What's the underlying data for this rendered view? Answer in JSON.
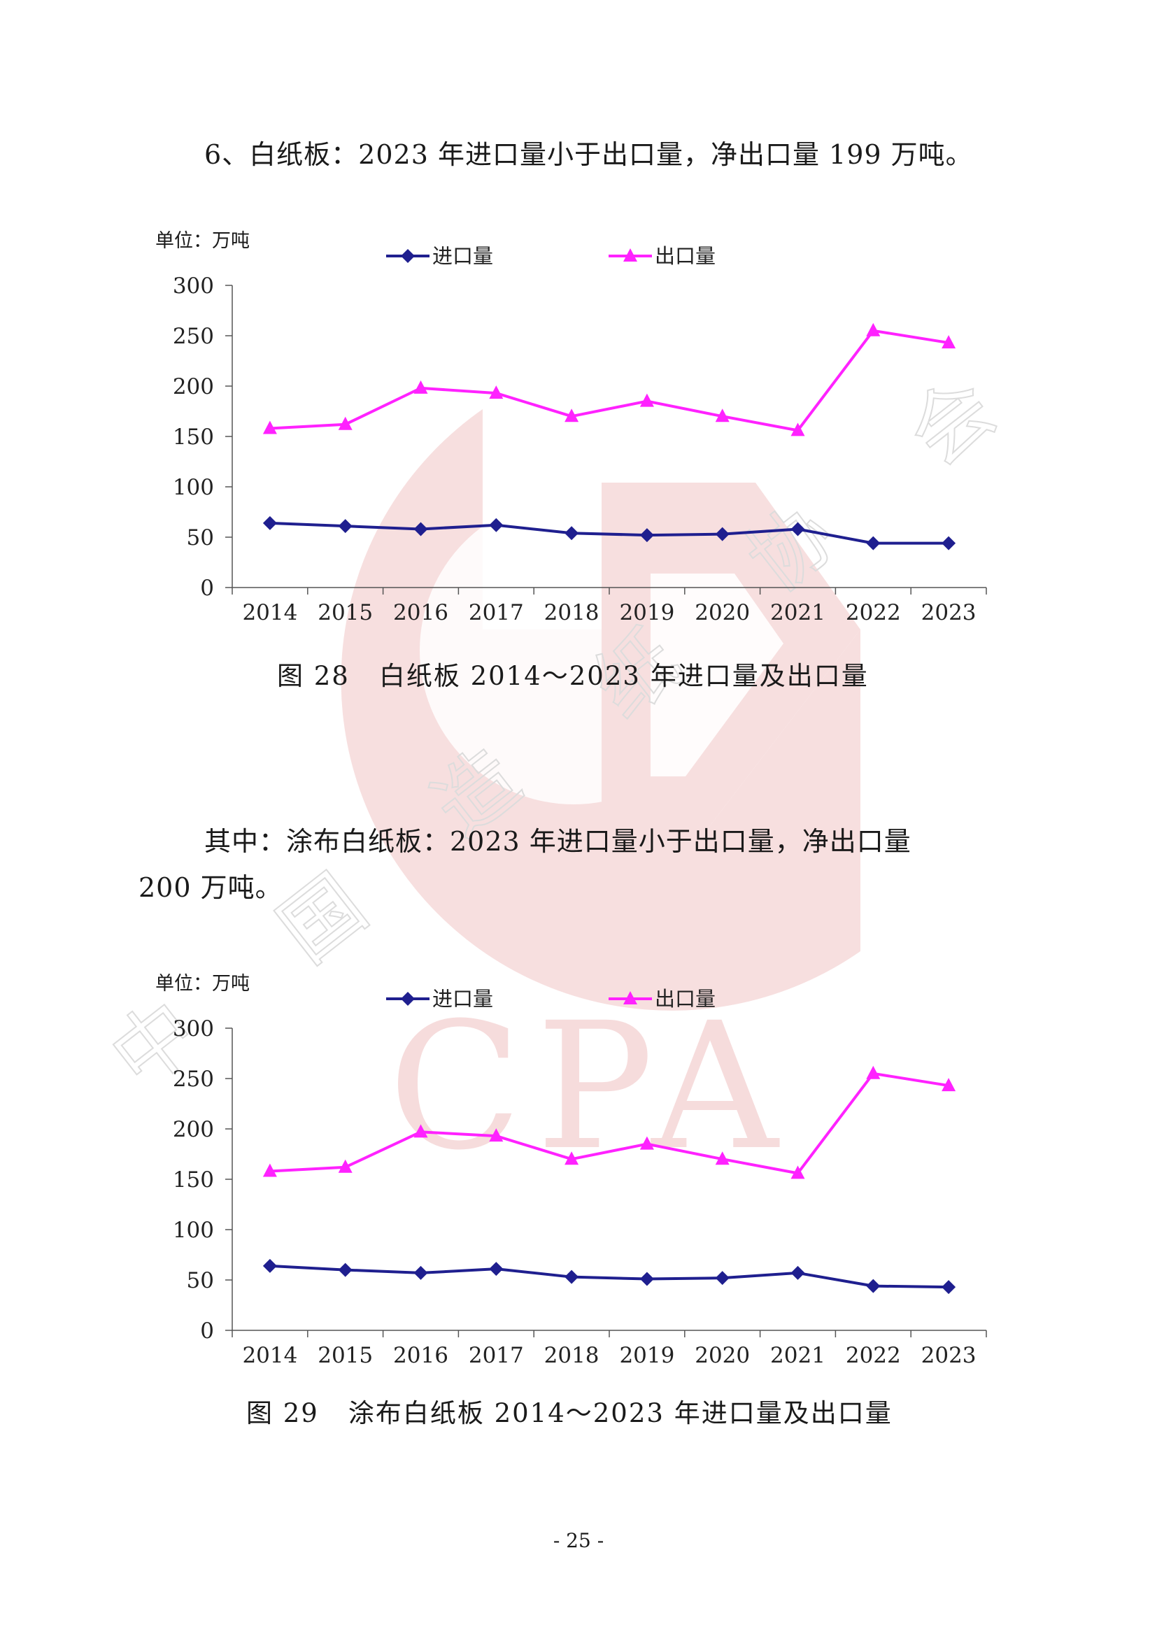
{
  "paragraphs": {
    "section6": "6、白纸板：2023 年进口量小于出口量，净出口量 199 万吨。",
    "coated_line1": "其中：涂布白纸板：2023 年进口量小于出口量，净出口量",
    "coated_line2": "200 万吨。"
  },
  "watermark": {
    "text": "CPA",
    "chars": [
      "中",
      "国",
      "造",
      "纸",
      "协",
      "会"
    ]
  },
  "colors": {
    "import": "#1f1f8f",
    "export": "#ff22ff",
    "watermark": "#f6dcdc"
  },
  "chart_data": [
    {
      "type": "line",
      "unit_label": "单位：万吨",
      "caption_num": "图 28",
      "caption_text": "白纸板 2014～2023 年进口量及出口量",
      "categories": [
        "2014",
        "2015",
        "2016",
        "2017",
        "2018",
        "2019",
        "2020",
        "2021",
        "2022",
        "2023"
      ],
      "ylim": [
        0,
        300
      ],
      "yticks": [
        0,
        50,
        100,
        150,
        200,
        250,
        300
      ],
      "legend_position": "top",
      "grid": false,
      "series": [
        {
          "name": "进口量",
          "marker": "diamond",
          "values": [
            64,
            61,
            58,
            62,
            54,
            52,
            53,
            58,
            44,
            44
          ]
        },
        {
          "name": "出口量",
          "marker": "triangle",
          "values": [
            158,
            162,
            198,
            193,
            170,
            185,
            170,
            156,
            255,
            243
          ]
        }
      ]
    },
    {
      "type": "line",
      "unit_label": "单位：万吨",
      "caption_num": "图 29",
      "caption_text": "涂布白纸板 2014～2023 年进口量及出口量",
      "categories": [
        "2014",
        "2015",
        "2016",
        "2017",
        "2018",
        "2019",
        "2020",
        "2021",
        "2022",
        "2023"
      ],
      "ylim": [
        0,
        300
      ],
      "yticks": [
        0,
        50,
        100,
        150,
        200,
        250,
        300
      ],
      "legend_position": "top",
      "grid": false,
      "series": [
        {
          "name": "进口量",
          "marker": "diamond",
          "values": [
            64,
            60,
            57,
            61,
            53,
            51,
            52,
            57,
            44,
            43
          ]
        },
        {
          "name": "出口量",
          "marker": "triangle",
          "values": [
            158,
            162,
            197,
            193,
            170,
            185,
            170,
            156,
            255,
            243
          ]
        }
      ]
    }
  ],
  "page_number": "- 25 -"
}
